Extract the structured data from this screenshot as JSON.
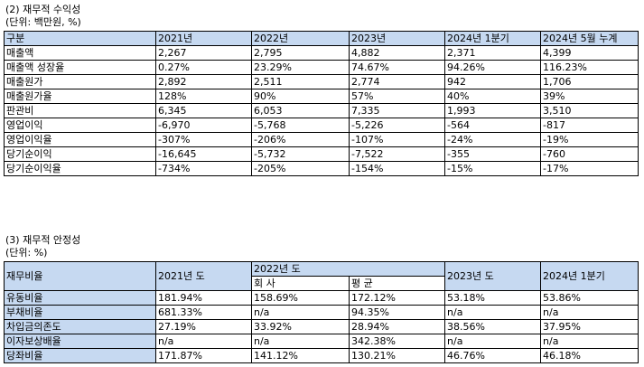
{
  "section1": {
    "title": "(2) 재무적 수익성",
    "unit": "(단위: 백만원, %)",
    "table": {
      "header": [
        "구분",
        "2021년",
        "2022년",
        "2023년",
        "2024년 1분기",
        "2024년 5월 누계"
      ],
      "rows": [
        [
          "매출액",
          "2,267",
          "2,795",
          "4,882",
          "2,371",
          "4,399"
        ],
        [
          "매출액 성장율",
          "0.27%",
          "23.29%",
          "74.67%",
          "94.26%",
          "116.23%"
        ],
        [
          "매출원가",
          "2,892",
          "2,511",
          "2,774",
          "942",
          "1,706"
        ],
        [
          "매출원가율",
          "128%",
          "90%",
          "57%",
          "40%",
          "39%"
        ],
        [
          "판관비",
          "6,345",
          "6,053",
          "7,335",
          "1,993",
          "3,510"
        ],
        [
          "영업이익",
          "-6,970",
          "-5,768",
          "-5,226",
          "-564",
          "-817"
        ],
        [
          "영업이익율",
          "-307%",
          "-206%",
          "-107%",
          "-24%",
          "-19%"
        ],
        [
          "당기순이익",
          "-16,645",
          "-5,732",
          "-7,522",
          "-355",
          "-760"
        ],
        [
          "당기순이익율",
          "-734%",
          "-205%",
          "-154%",
          "-15%",
          "-17%"
        ]
      ]
    }
  },
  "section2": {
    "title": "(3) 재무적 안정성",
    "unit": "(단위: %)",
    "table": {
      "header": [
        "재무비율",
        "2021년 도",
        "2022년 도",
        "2023년 도",
        "2024년 1분기"
      ],
      "subheader": [
        "회 사",
        "평 균"
      ],
      "rows": [
        [
          "유동비율",
          "181.94%",
          "158.69%",
          "172.12%",
          "53.18%",
          "53.86%"
        ],
        [
          "부채비율",
          "681.33%",
          "n/a",
          "94.35%",
          "n/a",
          "n/a"
        ],
        [
          "차입금의존도",
          "27.19%",
          "33.92%",
          "28.94%",
          "38.56%",
          "37.95%"
        ],
        [
          "이자보상배율",
          "n/a",
          "n/a",
          "342.38%",
          "n/a",
          "n/a"
        ],
        [
          "당좌비율",
          "171.87%",
          "141.12%",
          "130.21%",
          "46.76%",
          "46.18%"
        ]
      ]
    }
  }
}
